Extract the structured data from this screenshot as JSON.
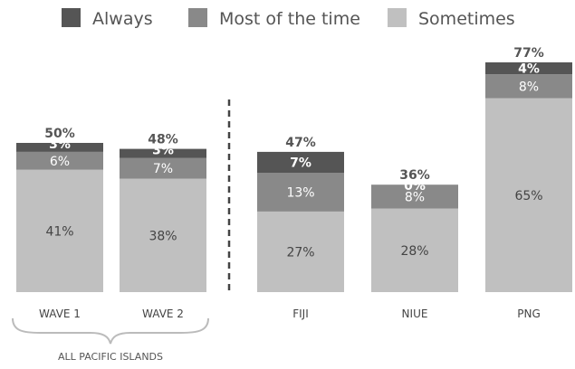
{
  "chart_data": {
    "type": "bar",
    "stacked": true,
    "categories": [
      "WAVE 1",
      "WAVE 2",
      "FIJI",
      "NIUE",
      "PNG"
    ],
    "series": [
      {
        "name": "Always",
        "color": "#555555",
        "values": [
          3,
          3,
          7,
          0,
          4
        ],
        "labels": [
          "3%",
          "3%",
          "7%",
          "0%",
          "4%"
        ]
      },
      {
        "name": "Most of the time",
        "color": "#898989",
        "values": [
          6,
          7,
          13,
          8,
          8
        ],
        "labels": [
          "6%",
          "7%",
          "13%",
          "8%",
          "8%"
        ]
      },
      {
        "name": "Sometimes",
        "color": "#c0c0c0",
        "values": [
          41,
          38,
          27,
          28,
          65
        ],
        "labels": [
          "41%",
          "38%",
          "27%",
          "28%",
          "65%"
        ]
      }
    ],
    "totals": [
      "50%",
      "48%",
      "47%",
      "36%",
      "77%"
    ],
    "group_label": "ALL PACIFIC ISLANDS",
    "legend_position": "top",
    "grid": false,
    "ylim": [
      0,
      80
    ]
  }
}
